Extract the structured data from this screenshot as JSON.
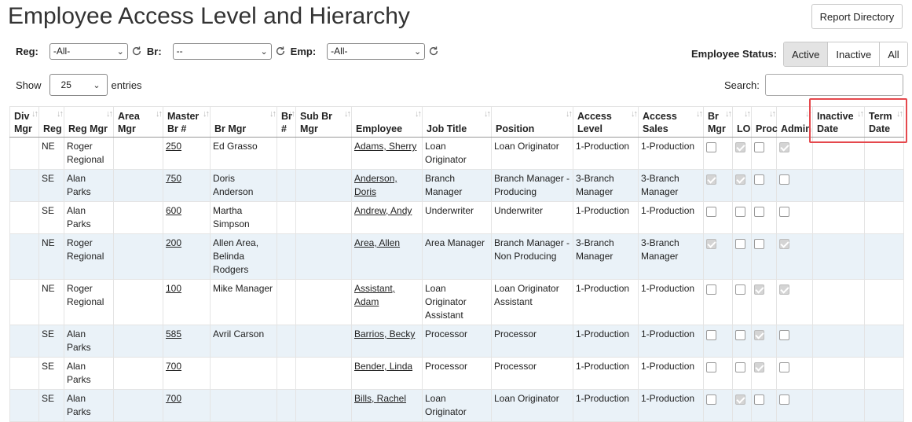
{
  "page": {
    "title": "Employee Access Level and Hierarchy",
    "report_button": "Report Directory"
  },
  "filters": [
    {
      "label": "Reg:",
      "value": "-All-"
    },
    {
      "label": "Br:",
      "value": "--"
    },
    {
      "label": "Emp:",
      "value": "-All-"
    }
  ],
  "status": {
    "label": "Employee Status:",
    "options": [
      "Active",
      "Inactive",
      "All"
    ],
    "selected": "Active"
  },
  "entries": {
    "show_label": "Show",
    "value": "25",
    "suffix": "entries"
  },
  "search": {
    "label": "Search:",
    "value": ""
  },
  "table": {
    "columns": [
      {
        "key": "div_mgr",
        "label": "Div Mgr"
      },
      {
        "key": "reg",
        "label": "Reg"
      },
      {
        "key": "reg_mgr",
        "label": "Reg Mgr"
      },
      {
        "key": "area_mgr",
        "label": "Area Mgr"
      },
      {
        "key": "master_br",
        "label": "Master Br #"
      },
      {
        "key": "br_mgr",
        "label": "Br Mgr"
      },
      {
        "key": "br_no",
        "label": "Br #"
      },
      {
        "key": "sub_br_mgr",
        "label": "Sub Br Mgr"
      },
      {
        "key": "employee",
        "label": "Employee"
      },
      {
        "key": "job_title",
        "label": "Job Title"
      },
      {
        "key": "position",
        "label": "Position"
      },
      {
        "key": "access_level",
        "label": "Access Level"
      },
      {
        "key": "access_sales",
        "label": "Access Sales"
      },
      {
        "key": "br_mgr_flag",
        "label": "Br Mgr"
      },
      {
        "key": "lo",
        "label": "LO"
      },
      {
        "key": "proc",
        "label": "Proc"
      },
      {
        "key": "admin",
        "label": "Admin"
      },
      {
        "key": "inactive_date",
        "label": "Inactive Date"
      },
      {
        "key": "term_date",
        "label": "Term Date"
      }
    ],
    "rows": [
      {
        "div_mgr": "",
        "reg": "NE",
        "reg_mgr": "Roger Regional",
        "area_mgr": "",
        "master_br": "250",
        "br_mgr": "Ed Grasso",
        "br_no": "",
        "sub_br_mgr": "",
        "employee": "Adams, Sherry",
        "job_title": "Loan Originator",
        "position": "Loan Originator",
        "access_level": "1-Production",
        "access_sales": "1-Production",
        "br_mgr_flag": false,
        "lo": true,
        "proc": false,
        "admin": true,
        "inactive_date": "",
        "term_date": ""
      },
      {
        "div_mgr": "",
        "reg": "SE",
        "reg_mgr": "Alan Parks",
        "area_mgr": "",
        "master_br": "750",
        "br_mgr": "Doris Anderson",
        "br_no": "",
        "sub_br_mgr": "",
        "employee": "Anderson, Doris",
        "job_title": "Branch Manager",
        "position": "Branch Manager - Producing",
        "access_level": "3-Branch Manager",
        "access_sales": "3-Branch Manager",
        "br_mgr_flag": true,
        "lo": true,
        "proc": false,
        "admin": false,
        "inactive_date": "",
        "term_date": ""
      },
      {
        "div_mgr": "",
        "reg": "SE",
        "reg_mgr": "Alan Parks",
        "area_mgr": "",
        "master_br": "600",
        "br_mgr": "Martha Simpson",
        "br_no": "",
        "sub_br_mgr": "",
        "employee": "Andrew, Andy",
        "job_title": "Underwriter",
        "position": "Underwriter",
        "access_level": "1-Production",
        "access_sales": "1-Production",
        "br_mgr_flag": false,
        "lo": false,
        "proc": false,
        "admin": false,
        "inactive_date": "",
        "term_date": ""
      },
      {
        "div_mgr": "",
        "reg": "NE",
        "reg_mgr": "Roger Regional",
        "area_mgr": "",
        "master_br": "200",
        "br_mgr": "Allen Area, Belinda Rodgers",
        "br_no": "",
        "sub_br_mgr": "",
        "employee": "Area, Allen",
        "job_title": "Area Manager",
        "position": "Branch Manager - Non Producing",
        "access_level": "3-Branch Manager",
        "access_sales": "3-Branch Manager",
        "br_mgr_flag": true,
        "lo": false,
        "proc": false,
        "admin": true,
        "inactive_date": "",
        "term_date": ""
      },
      {
        "div_mgr": "",
        "reg": "NE",
        "reg_mgr": "Roger Regional",
        "area_mgr": "",
        "master_br": "100",
        "br_mgr": "Mike Manager",
        "br_no": "",
        "sub_br_mgr": "",
        "employee": "Assistant, Adam",
        "job_title": "Loan Originator Assistant",
        "position": "Loan Originator Assistant",
        "access_level": "1-Production",
        "access_sales": "1-Production",
        "br_mgr_flag": false,
        "lo": false,
        "proc": true,
        "admin": true,
        "inactive_date": "",
        "term_date": ""
      },
      {
        "div_mgr": "",
        "reg": "SE",
        "reg_mgr": "Alan Parks",
        "area_mgr": "",
        "master_br": "585",
        "br_mgr": "Avril Carson",
        "br_no": "",
        "sub_br_mgr": "",
        "employee": "Barrios, Becky",
        "job_title": "Processor",
        "position": "Processor",
        "access_level": "1-Production",
        "access_sales": "1-Production",
        "br_mgr_flag": false,
        "lo": false,
        "proc": true,
        "admin": false,
        "inactive_date": "",
        "term_date": ""
      },
      {
        "div_mgr": "",
        "reg": "SE",
        "reg_mgr": "Alan Parks",
        "area_mgr": "",
        "master_br": "700",
        "br_mgr": "",
        "br_no": "",
        "sub_br_mgr": "",
        "employee": "Bender, Linda",
        "job_title": "Processor",
        "position": "Processor",
        "access_level": "1-Production",
        "access_sales": "1-Production",
        "br_mgr_flag": false,
        "lo": false,
        "proc": true,
        "admin": false,
        "inactive_date": "",
        "term_date": ""
      },
      {
        "div_mgr": "",
        "reg": "SE",
        "reg_mgr": "Alan Parks",
        "area_mgr": "",
        "master_br": "700",
        "br_mgr": "",
        "br_no": "",
        "sub_br_mgr": "",
        "employee": "Bills, Rachel",
        "job_title": "Loan Originator",
        "position": "Loan Originator",
        "access_level": "1-Production",
        "access_sales": "1-Production",
        "br_mgr_flag": false,
        "lo": true,
        "proc": false,
        "admin": false,
        "inactive_date": "",
        "term_date": ""
      }
    ]
  },
  "highlight_color": "#e5484d",
  "icons": {
    "refresh": "refresh-icon",
    "sort": "sort-arrows-icon",
    "chevron": "chevron-down-icon"
  }
}
